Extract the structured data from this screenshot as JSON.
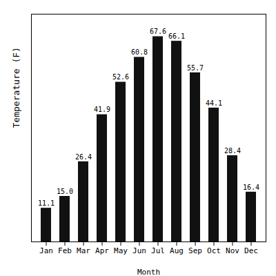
{
  "chart_data": {
    "type": "bar",
    "categories": [
      "Jan",
      "Feb",
      "Mar",
      "Apr",
      "May",
      "Jun",
      "Jul",
      "Aug",
      "Sep",
      "Oct",
      "Nov",
      "Dec"
    ],
    "values": [
      11.1,
      15.0,
      26.4,
      41.9,
      52.6,
      60.8,
      67.6,
      66.1,
      55.7,
      44.1,
      28.4,
      16.4
    ],
    "value_labels": [
      "11.1",
      "15.0",
      "26.4",
      "41.9",
      "52.6",
      "60.8",
      "67.6",
      "66.1",
      "55.7",
      "44.1",
      "28.4",
      "16.4"
    ],
    "color": "#111111",
    "xlabel": "Month",
    "ylabel": "Temperature (F)",
    "ylim": [
      0,
      75
    ],
    "yticks": [],
    "data_labels": true,
    "tick_labels": "x",
    "grid": false
  }
}
